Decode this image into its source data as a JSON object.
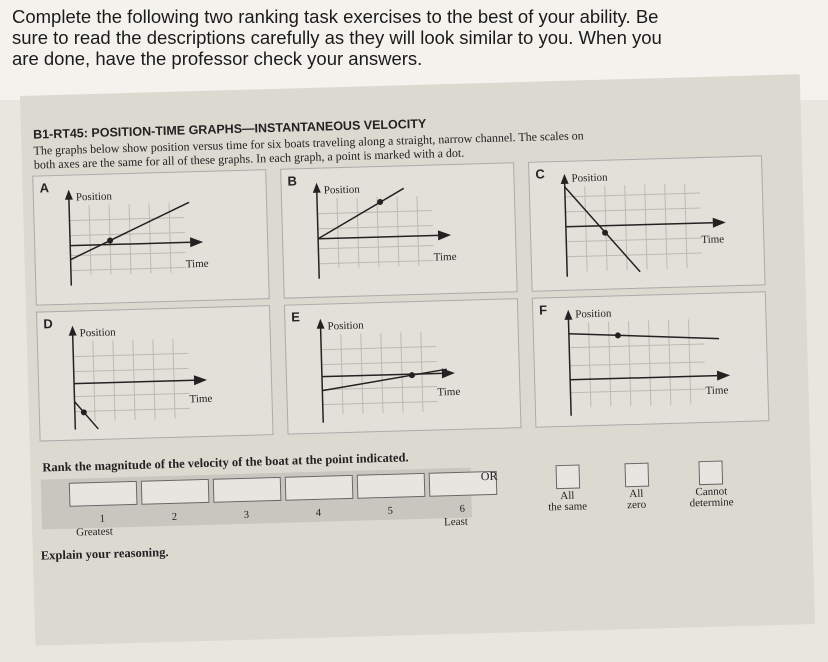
{
  "instructions": {
    "line1": "Complete the following two ranking task exercises to the best of your ability.  Be",
    "line2": "sure to read the descriptions carefully as they will look similar to you.  When you",
    "line3": "are done, have the professor check your answers."
  },
  "worksheet": {
    "title": "B1-RT45: POSITION-TIME GRAPHS—INSTANTANEOUS VELOCITY",
    "desc_line1": "The graphs below show position versus time for six boats traveling along a straight, narrow channel. The scales on",
    "desc_line2": "both axes are the same for all of these graphs. In each graph, a point is marked with a dot.",
    "y_axis_label": "Position",
    "x_axis_label": "Time",
    "graphs": [
      {
        "letter": "A"
      },
      {
        "letter": "B"
      },
      {
        "letter": "C"
      },
      {
        "letter": "D"
      },
      {
        "letter": "E"
      },
      {
        "letter": "F"
      }
    ],
    "rank_prompt": "Rank the magnitude of the velocity of the boat at the point indicated.",
    "rank_numbers": [
      "1",
      "2",
      "3",
      "4",
      "5",
      "6"
    ],
    "greatest_label": "Greatest",
    "least_label": "Least",
    "or_label": "OR",
    "all_same_line1": "All",
    "all_same_line2": "the same",
    "all_zero_line1": "All",
    "all_zero_line2": "zero",
    "cannot_line1": "Cannot",
    "cannot_line2": "determine",
    "explain_label": "Explain your reasoning."
  }
}
